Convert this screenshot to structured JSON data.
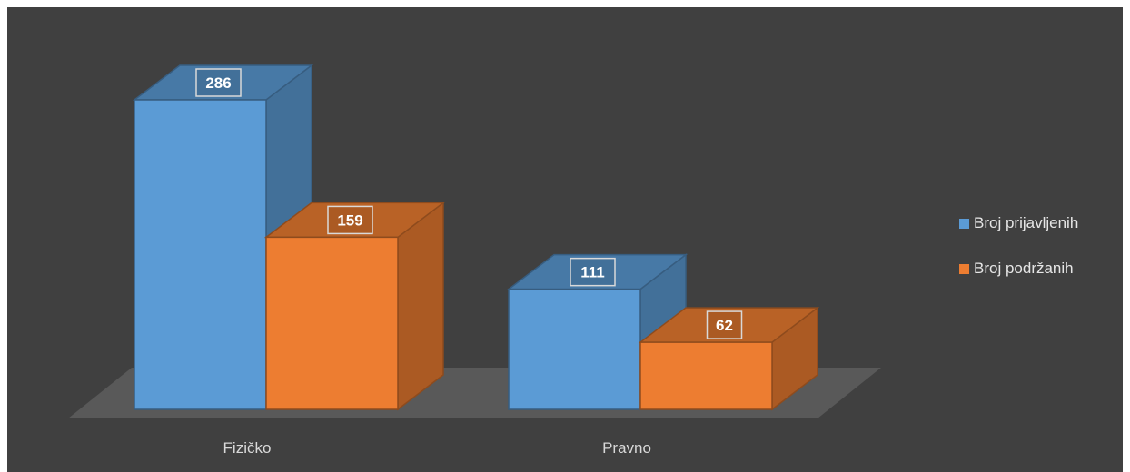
{
  "chart_data": {
    "type": "bar",
    "subtype": "3d-clustered-column",
    "categories": [
      "Fizičko",
      "Pravno"
    ],
    "series": [
      {
        "name": "Broj prijavljenih",
        "values": [
          286,
          111
        ],
        "color": "#5b9bd5"
      },
      {
        "name": "Broj podržanih",
        "values": [
          159,
          62
        ],
        "color": "#ed7d31"
      }
    ],
    "ylim": [
      0,
      286
    ],
    "grid": false,
    "legend_position": "right",
    "data_labels": true
  },
  "colors": {
    "background": "#404040",
    "floor": "#595959"
  }
}
